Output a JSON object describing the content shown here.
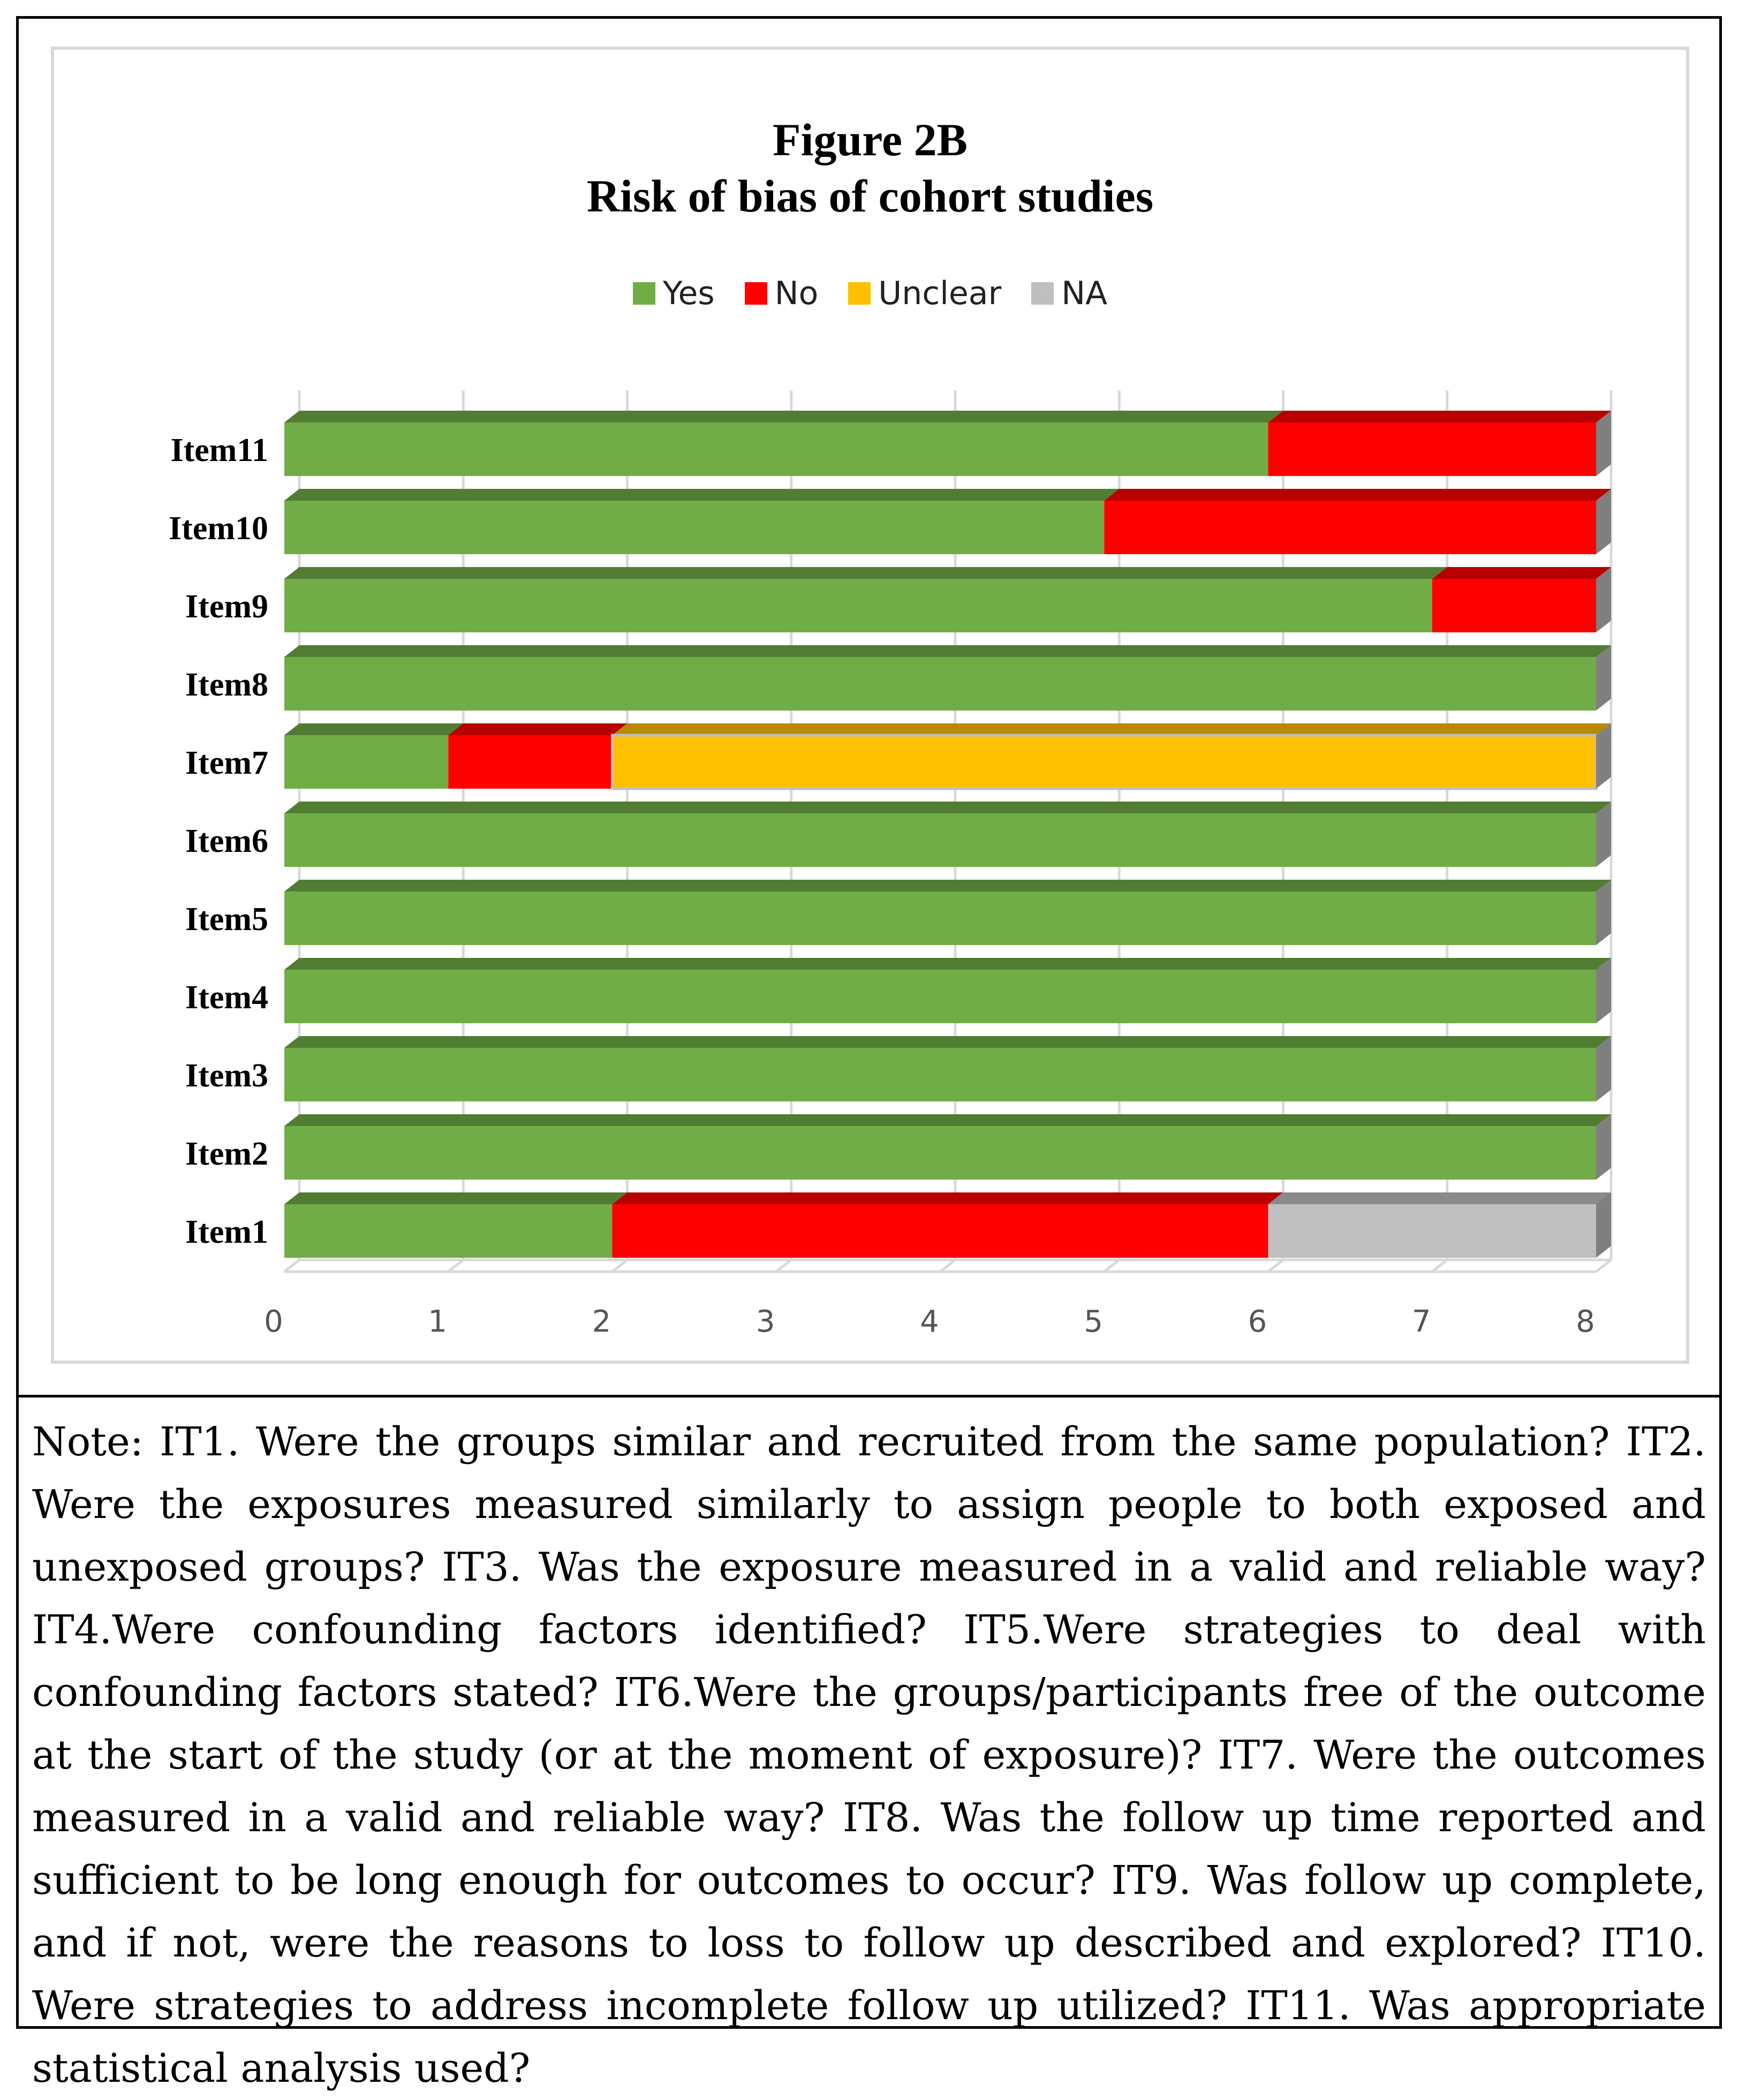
{
  "chart_data": {
    "type": "bar",
    "orientation": "horizontal",
    "stacked": true,
    "title": "Figure 2B",
    "subtitle": "Risk of bias of cohort studies",
    "categories": [
      "Item1",
      "Item2",
      "Item3",
      "Item4",
      "Item5",
      "Item6",
      "Item7",
      "Item8",
      "Item9",
      "Item10",
      "Item11"
    ],
    "series": [
      {
        "name": "Yes",
        "color": "#70ad47",
        "values": [
          2,
          8,
          8,
          8,
          8,
          8,
          1,
          8,
          7,
          5,
          6
        ]
      },
      {
        "name": "No",
        "color": "#ff0000",
        "values": [
          4,
          0,
          0,
          0,
          0,
          0,
          1,
          0,
          1,
          3,
          2
        ]
      },
      {
        "name": "Unclear",
        "color": "#ffc000",
        "values": [
          0,
          0,
          0,
          0,
          0,
          0,
          6,
          0,
          0,
          0,
          0
        ]
      },
      {
        "name": "NA",
        "color": "#bfbfbf",
        "values": [
          2,
          0,
          0,
          0,
          0,
          0,
          0,
          0,
          0,
          0,
          0
        ]
      }
    ],
    "xlim": [
      0,
      8
    ],
    "xticks": [
      "0",
      "1",
      "2",
      "3",
      "4",
      "5",
      "6",
      "7",
      "8"
    ],
    "xlabel": "",
    "ylabel": "",
    "legend_position": "top",
    "grid": true
  },
  "note": "Note: IT1. Were the groups similar and recruited from the same population? IT2. Were the exposures measured similarly to assign people to both exposed and unexposed groups? IT3. Was the exposure measured in a valid and reliable way? IT4.Were confounding factors identified? IT5.Were strategies to deal with confounding factors stated? IT6.Were the groups/participants free of the outcome at the start of the study (or at the moment of exposure)? IT7. Were the outcomes measured in a valid and reliable way? IT8. Was the follow up time reported and sufficient to be long enough for outcomes to occur? IT9. Was follow up complete, and if not, were the reasons to loss to follow up described and explored? IT10. Were strategies to address incomplete follow up utilized? IT11. Was appropriate statistical analysis used?"
}
